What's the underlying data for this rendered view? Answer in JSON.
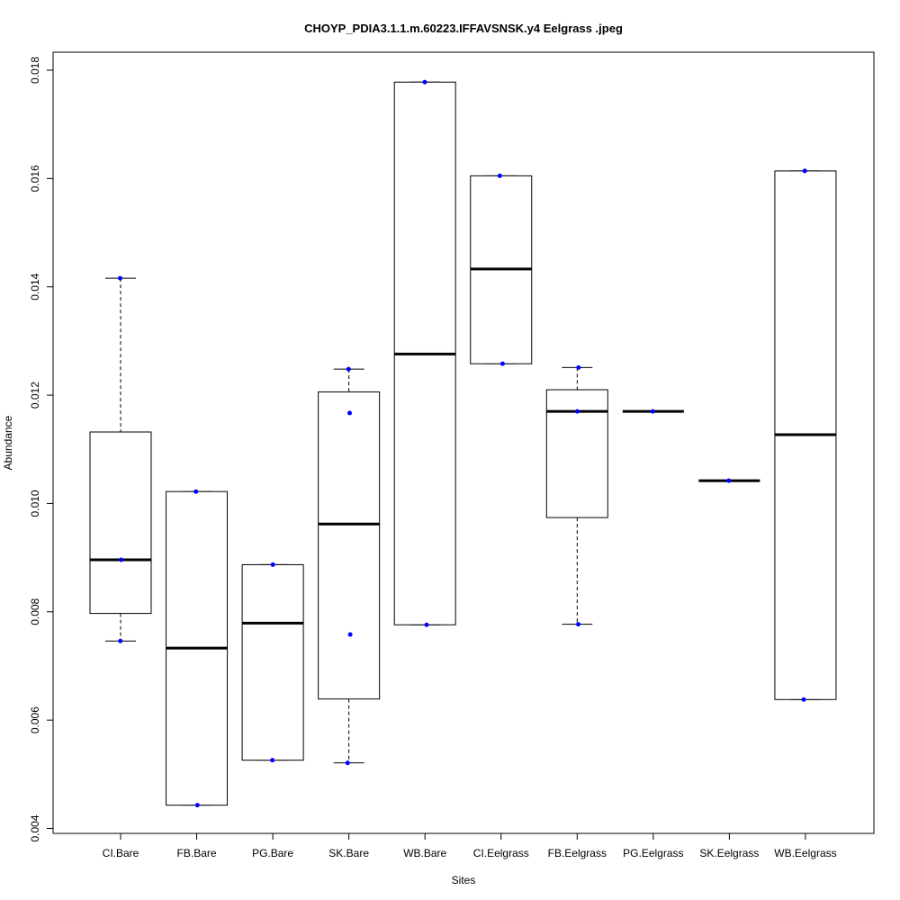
{
  "chart_data": {
    "type": "boxplot",
    "title": "CHOYP_PDIA3.1.1.m.60223.IFFAVSNSK.y4 Eelgrass .jpeg",
    "xlabel": "Sites",
    "ylabel": "Abundance",
    "ylim": [
      0.004,
      0.018
    ],
    "yticks": [
      "0.004",
      "0.006",
      "0.008",
      "0.010",
      "0.012",
      "0.014",
      "0.016",
      "0.018"
    ],
    "grid": false,
    "point_color": "#0000ff",
    "categories": [
      "CI.Bare",
      "FB.Bare",
      "PG.Bare",
      "SK.Bare",
      "WB.Bare",
      "CI.Eelgrass",
      "FB.Eelgrass",
      "PG.Eelgrass",
      "SK.Eelgrass",
      "WB.Eelgrass"
    ],
    "boxes": [
      {
        "whisker_low": 0.00746,
        "q1": 0.00797,
        "median": 0.00896,
        "q3": 0.01132,
        "whisker_high": 0.01416,
        "points": [
          0.01416,
          0.00896,
          0.00746
        ]
      },
      {
        "whisker_low": 0.00443,
        "q1": 0.00443,
        "median": 0.00733,
        "q3": 0.01022,
        "whisker_high": 0.01022,
        "points": [
          0.01022,
          0.00443
        ]
      },
      {
        "whisker_low": 0.00526,
        "q1": 0.00526,
        "median": 0.00779,
        "q3": 0.00887,
        "whisker_high": 0.00887,
        "points": [
          0.00887,
          0.00526
        ]
      },
      {
        "whisker_low": 0.00521,
        "q1": 0.00639,
        "median": 0.00962,
        "q3": 0.01206,
        "whisker_high": 0.01248,
        "points": [
          0.01248,
          0.01167,
          0.00758,
          0.00521
        ]
      },
      {
        "whisker_low": 0.00776,
        "q1": 0.00776,
        "median": 0.01276,
        "q3": 0.01778,
        "whisker_high": 0.01778,
        "points": [
          0.01778,
          0.00776
        ]
      },
      {
        "whisker_low": 0.01258,
        "q1": 0.01258,
        "median": 0.01433,
        "q3": 0.01605,
        "whisker_high": 0.01605,
        "points": [
          0.01605,
          0.01258
        ]
      },
      {
        "whisker_low": 0.00777,
        "q1": 0.00974,
        "median": 0.0117,
        "q3": 0.0121,
        "whisker_high": 0.01251,
        "points": [
          0.01251,
          0.0117,
          0.00777
        ]
      },
      {
        "whisker_low": 0.0117,
        "q1": 0.0117,
        "median": 0.0117,
        "q3": 0.0117,
        "whisker_high": 0.0117,
        "points": [
          0.0117
        ]
      },
      {
        "whisker_low": 0.01042,
        "q1": 0.01042,
        "median": 0.01042,
        "q3": 0.01042,
        "whisker_high": 0.01042,
        "points": [
          0.01042
        ]
      },
      {
        "whisker_low": 0.00638,
        "q1": 0.00638,
        "median": 0.01127,
        "q3": 0.01614,
        "whisker_high": 0.01614,
        "points": [
          0.01614,
          0.00638
        ]
      }
    ]
  }
}
